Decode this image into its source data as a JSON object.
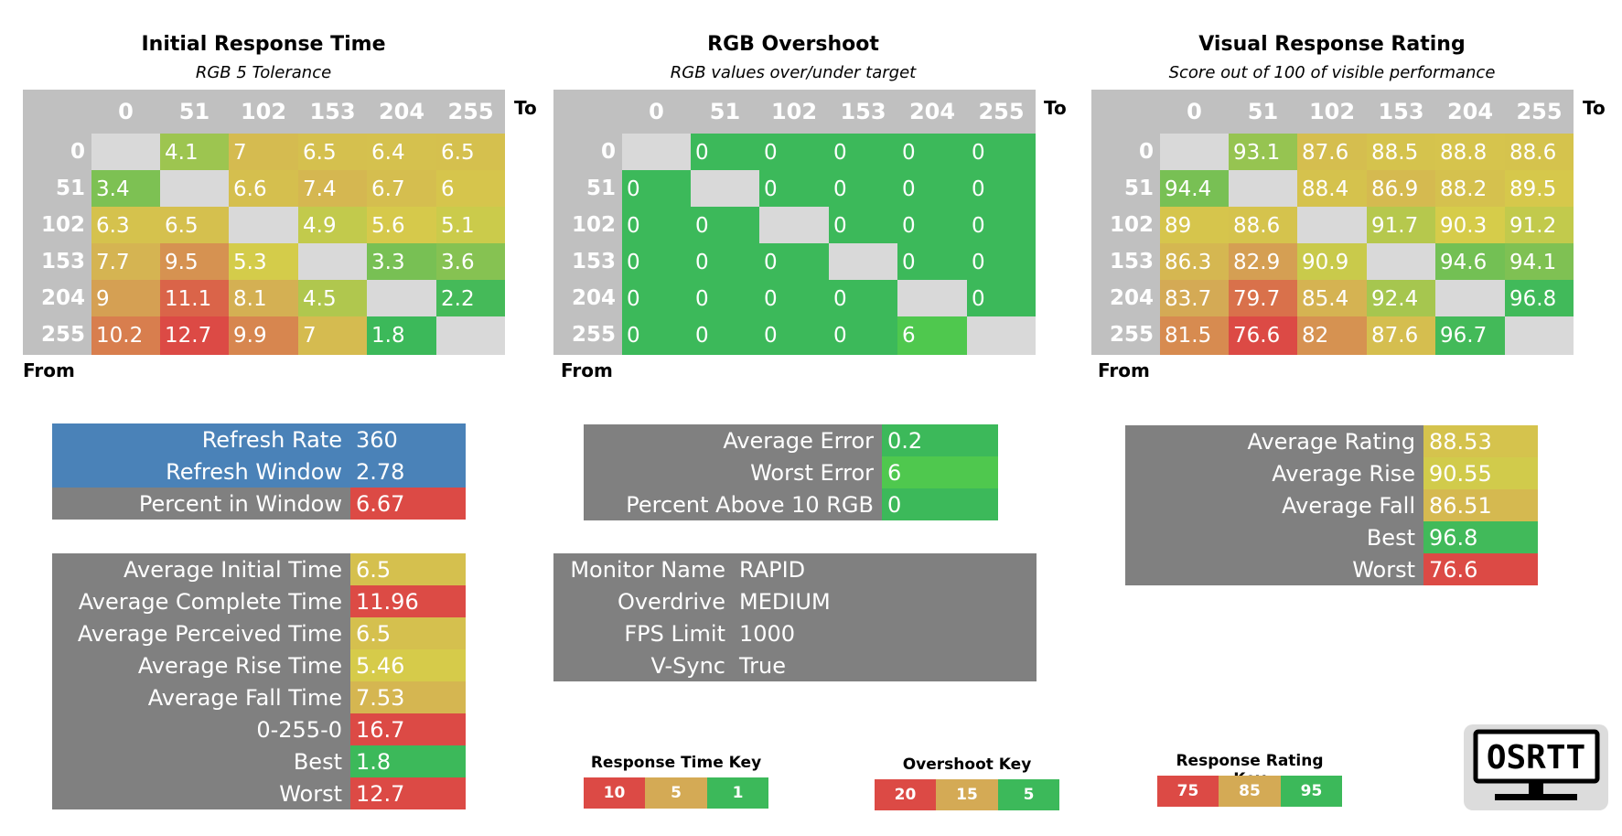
{
  "colors": {
    "gray": "#808080",
    "matrix_bg": "#c0c0c0",
    "blue": "#4a82b8",
    "red": "#dc4a45",
    "yellow": "#d4c84a",
    "green": "#3cb95a"
  },
  "matrices": [
    {
      "title": "Initial Response Time",
      "subtitle": "RGB 5 Tolerance",
      "to_label": "To",
      "from_label": "From",
      "headers": [
        "0",
        "51",
        "102",
        "153",
        "204",
        "255"
      ],
      "rows": [
        "0",
        "51",
        "102",
        "153",
        "204",
        "255"
      ],
      "values": [
        [
          "",
          "4.1",
          "7",
          "6.5",
          "6.4",
          "6.5"
        ],
        [
          "3.4",
          "",
          "6.6",
          "7.4",
          "6.7",
          "6"
        ],
        [
          "6.3",
          "6.5",
          "",
          "4.9",
          "5.6",
          "5.1"
        ],
        [
          "7.7",
          "9.5",
          "5.3",
          "",
          "3.3",
          "3.6"
        ],
        [
          "9",
          "11.1",
          "8.1",
          "4.5",
          "",
          "2.2"
        ],
        [
          "10.2",
          "12.7",
          "9.9",
          "7",
          "1.8",
          ""
        ]
      ],
      "scale": [
        10,
        5,
        1
      ]
    },
    {
      "title": "RGB Overshoot",
      "subtitle": "RGB values over/under target",
      "to_label": "To",
      "from_label": "From",
      "headers": [
        "0",
        "51",
        "102",
        "153",
        "204",
        "255"
      ],
      "rows": [
        "0",
        "51",
        "102",
        "153",
        "204",
        "255"
      ],
      "values": [
        [
          "",
          "0",
          "0",
          "0",
          "0",
          "0"
        ],
        [
          "0",
          "",
          "0",
          "0",
          "0",
          "0"
        ],
        [
          "0",
          "0",
          "",
          "0",
          "0",
          "0"
        ],
        [
          "0",
          "0",
          "0",
          "",
          "0",
          "0"
        ],
        [
          "0",
          "0",
          "0",
          "0",
          "",
          "0"
        ],
        [
          "0",
          "0",
          "0",
          "0",
          "6",
          ""
        ]
      ],
      "scale": [
        20,
        15,
        5
      ]
    },
    {
      "title": "Visual Response Rating",
      "subtitle": "Score out of 100 of visible performance",
      "to_label": "To",
      "from_label": "From",
      "headers": [
        "0",
        "51",
        "102",
        "153",
        "204",
        "255"
      ],
      "rows": [
        "0",
        "51",
        "102",
        "153",
        "204",
        "255"
      ],
      "values": [
        [
          "",
          "93.1",
          "87.6",
          "88.5",
          "88.8",
          "88.6"
        ],
        [
          "94.4",
          "",
          "88.4",
          "86.9",
          "88.2",
          "89.5"
        ],
        [
          "89",
          "88.6",
          "",
          "91.7",
          "90.3",
          "91.2"
        ],
        [
          "86.3",
          "82.9",
          "90.9",
          "",
          "94.6",
          "94.1"
        ],
        [
          "83.7",
          "79.7",
          "85.4",
          "92.4",
          "",
          "96.8"
        ],
        [
          "81.5",
          "76.6",
          "82",
          "87.6",
          "96.7",
          ""
        ]
      ],
      "scale": [
        75,
        85,
        95
      ]
    }
  ],
  "refresh_stats": [
    {
      "label": "Refresh Rate",
      "value": "360"
    },
    {
      "label": "Refresh Window",
      "value": "2.78"
    },
    {
      "label": "Percent in Window",
      "value": "6.67"
    }
  ],
  "response_stats": [
    {
      "label": "Average Initial Time",
      "value": "6.5"
    },
    {
      "label": "Average Complete Time",
      "value": "11.96"
    },
    {
      "label": "Average Perceived Time",
      "value": "6.5"
    },
    {
      "label": "Average Rise Time",
      "value": "5.46"
    },
    {
      "label": "Average Fall Time",
      "value": "7.53"
    },
    {
      "label": "0-255-0",
      "value": "16.7"
    },
    {
      "label": "Best",
      "value": "1.8"
    },
    {
      "label": "Worst",
      "value": "12.7"
    }
  ],
  "overshoot_stats": [
    {
      "label": "Average Error",
      "value": "0.2"
    },
    {
      "label": "Worst Error",
      "value": "6"
    },
    {
      "label": "Percent Above 10 RGB",
      "value": "0"
    }
  ],
  "monitor_info": [
    {
      "label": "Monitor Name",
      "value": "RAPID"
    },
    {
      "label": "Overdrive",
      "value": "MEDIUM"
    },
    {
      "label": "FPS Limit",
      "value": "1000"
    },
    {
      "label": "V-Sync",
      "value": "True"
    }
  ],
  "rating_stats": [
    {
      "label": "Average Rating",
      "value": "88.53"
    },
    {
      "label": "Average Rise",
      "value": "90.55"
    },
    {
      "label": "Average Fall",
      "value": "86.51"
    },
    {
      "label": "Best",
      "value": "96.8"
    },
    {
      "label": "Worst",
      "value": "76.6"
    }
  ],
  "keys": [
    {
      "title": "Response Time Key",
      "values": [
        "10",
        "5",
        "1"
      ]
    },
    {
      "title": "Overshoot Key",
      "values": [
        "20",
        "15",
        "5"
      ]
    },
    {
      "title": "Response Rating Key",
      "values": [
        "75",
        "85",
        "95"
      ]
    }
  ],
  "logo_text": "OSRTT",
  "chart_data": [
    {
      "type": "heatmap",
      "title": "Initial Response Time",
      "subtitle": "RGB 5 Tolerance",
      "xlabel": "To",
      "ylabel": "From",
      "x": [
        "0",
        "51",
        "102",
        "153",
        "204",
        "255"
      ],
      "y": [
        "0",
        "51",
        "102",
        "153",
        "204",
        "255"
      ],
      "values": [
        [
          null,
          4.1,
          7,
          6.5,
          6.4,
          6.5
        ],
        [
          3.4,
          null,
          6.6,
          7.4,
          6.7,
          6
        ],
        [
          6.3,
          6.5,
          null,
          4.9,
          5.6,
          5.1
        ],
        [
          7.7,
          9.5,
          5.3,
          null,
          3.3,
          3.6
        ],
        [
          9,
          11.1,
          8.1,
          4.5,
          null,
          2.2
        ],
        [
          10.2,
          12.7,
          9.9,
          7,
          1.8,
          null
        ]
      ]
    },
    {
      "type": "heatmap",
      "title": "RGB Overshoot",
      "subtitle": "RGB values over/under target",
      "xlabel": "To",
      "ylabel": "From",
      "x": [
        "0",
        "51",
        "102",
        "153",
        "204",
        "255"
      ],
      "y": [
        "0",
        "51",
        "102",
        "153",
        "204",
        "255"
      ],
      "values": [
        [
          null,
          0,
          0,
          0,
          0,
          0
        ],
        [
          0,
          null,
          0,
          0,
          0,
          0
        ],
        [
          0,
          0,
          null,
          0,
          0,
          0
        ],
        [
          0,
          0,
          0,
          null,
          0,
          0
        ],
        [
          0,
          0,
          0,
          0,
          null,
          0
        ],
        [
          0,
          0,
          0,
          0,
          6,
          null
        ]
      ]
    },
    {
      "type": "heatmap",
      "title": "Visual Response Rating",
      "subtitle": "Score out of 100 of visible performance",
      "xlabel": "To",
      "ylabel": "From",
      "x": [
        "0",
        "51",
        "102",
        "153",
        "204",
        "255"
      ],
      "y": [
        "0",
        "51",
        "102",
        "153",
        "204",
        "255"
      ],
      "values": [
        [
          null,
          93.1,
          87.6,
          88.5,
          88.8,
          88.6
        ],
        [
          94.4,
          null,
          88.4,
          86.9,
          88.2,
          89.5
        ],
        [
          89,
          88.6,
          null,
          91.7,
          90.3,
          91.2
        ],
        [
          86.3,
          82.9,
          90.9,
          null,
          94.6,
          94.1
        ],
        [
          83.7,
          79.7,
          85.4,
          92.4,
          null,
          96.8
        ],
        [
          81.5,
          76.6,
          82,
          87.6,
          96.7,
          null
        ]
      ]
    }
  ]
}
